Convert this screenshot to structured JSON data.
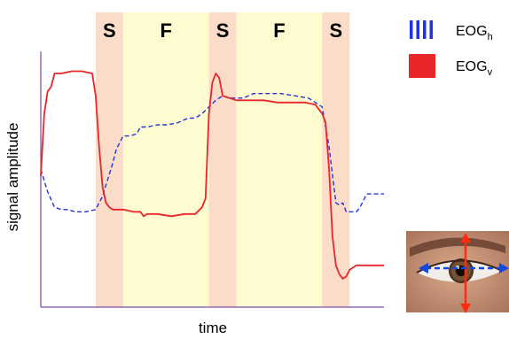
{
  "chart_data": {
    "type": "line",
    "xlabel": "time",
    "ylabel": "signal amplitude",
    "bands": [
      {
        "label": "S",
        "kind": "saccade",
        "start": 0.16,
        "end": 0.24
      },
      {
        "label": "F",
        "kind": "fixation",
        "start": 0.24,
        "end": 0.49
      },
      {
        "label": "S",
        "kind": "saccade",
        "start": 0.49,
        "end": 0.57
      },
      {
        "label": "F",
        "kind": "fixation",
        "start": 0.57,
        "end": 0.82
      },
      {
        "label": "S",
        "kind": "saccade",
        "start": 0.82,
        "end": 0.9
      }
    ],
    "series": [
      {
        "name": "EOG_h",
        "legend_label": "EOG",
        "legend_sub": "h",
        "style": "dashed",
        "color": "#2233dd",
        "x": [
          0.0,
          0.02,
          0.04,
          0.06,
          0.08,
          0.1,
          0.13,
          0.16,
          0.18,
          0.2,
          0.21,
          0.22,
          0.23,
          0.24,
          0.26,
          0.28,
          0.29,
          0.31,
          0.34,
          0.37,
          0.4,
          0.43,
          0.45,
          0.47,
          0.49,
          0.51,
          0.53,
          0.55,
          0.57,
          0.59,
          0.62,
          0.66,
          0.7,
          0.74,
          0.78,
          0.82,
          0.84,
          0.86,
          0.87,
          0.88,
          0.89,
          0.9,
          0.92,
          0.93,
          0.94,
          0.95,
          0.97,
          1.0
        ],
        "y": [
          0.55,
          0.45,
          0.38,
          0.37,
          0.37,
          0.36,
          0.36,
          0.37,
          0.43,
          0.53,
          0.58,
          0.64,
          0.67,
          0.7,
          0.7,
          0.71,
          0.74,
          0.74,
          0.75,
          0.75,
          0.76,
          0.78,
          0.78,
          0.8,
          0.83,
          0.86,
          0.88,
          0.87,
          0.87,
          0.87,
          0.89,
          0.89,
          0.89,
          0.88,
          0.87,
          0.83,
          0.65,
          0.4,
          0.39,
          0.4,
          0.36,
          0.36,
          0.36,
          0.38,
          0.41,
          0.44,
          0.44,
          0.44
        ]
      },
      {
        "name": "EOG_v",
        "legend_label": "EOG",
        "legend_sub": "v",
        "style": "solid",
        "color": "#e8262a",
        "x": [
          0.0,
          0.01,
          0.02,
          0.03,
          0.04,
          0.06,
          0.09,
          0.12,
          0.15,
          0.16,
          0.17,
          0.18,
          0.19,
          0.2,
          0.21,
          0.22,
          0.24,
          0.27,
          0.29,
          0.3,
          0.31,
          0.34,
          0.38,
          0.42,
          0.45,
          0.47,
          0.48,
          0.49,
          0.5,
          0.51,
          0.52,
          0.53,
          0.55,
          0.57,
          0.61,
          0.65,
          0.69,
          0.73,
          0.77,
          0.8,
          0.82,
          0.83,
          0.84,
          0.85,
          0.86,
          0.87,
          0.88,
          0.89,
          0.9,
          0.91,
          0.92,
          0.93,
          0.95,
          0.97,
          1.0
        ],
        "y": [
          0.52,
          0.8,
          0.9,
          0.92,
          0.98,
          0.98,
          0.99,
          0.99,
          0.98,
          0.88,
          0.65,
          0.47,
          0.4,
          0.38,
          0.37,
          0.37,
          0.37,
          0.36,
          0.36,
          0.34,
          0.35,
          0.35,
          0.34,
          0.35,
          0.35,
          0.38,
          0.42,
          0.8,
          0.94,
          0.98,
          0.96,
          0.88,
          0.87,
          0.86,
          0.86,
          0.86,
          0.85,
          0.85,
          0.85,
          0.84,
          0.8,
          0.76,
          0.55,
          0.25,
          0.12,
          0.08,
          0.06,
          0.07,
          0.1,
          0.11,
          0.12,
          0.12,
          0.12,
          0.12,
          0.12
        ]
      }
    ],
    "xlim": [
      0,
      1
    ],
    "ylim": [
      0,
      1
    ],
    "grid": false,
    "legend": "top-right",
    "colors": {
      "saccade_band": "#fbdcc8",
      "fixation_band": "#fefbd0"
    },
    "inset": {
      "image": "eye-photo",
      "arrows": [
        "vertical",
        "horizontal"
      ]
    }
  }
}
